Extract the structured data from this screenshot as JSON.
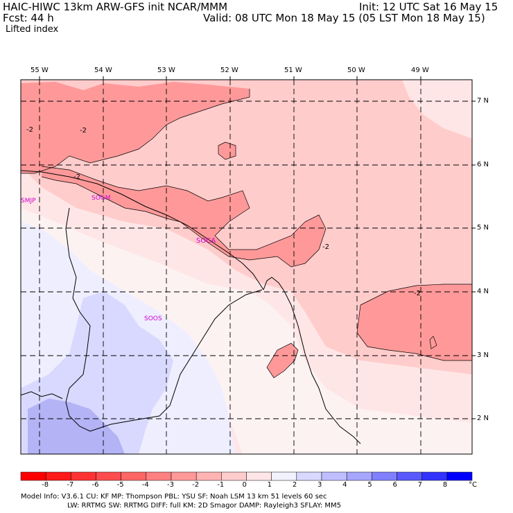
{
  "header": {
    "title": "HAIC-HIWC 13km ARW-GFS init   NCAR/MMM",
    "init": "Init: 12 UTC Sat 16 May 15",
    "fcst": "Fcst:    44 h",
    "valid": "Valid: 08 UTC Mon 18 May 15 (05 LST Mon 18 May 15)",
    "field": "Lifted index"
  },
  "map": {
    "lon_labels": [
      "55 W",
      "54 W",
      "53 W",
      "52 W",
      "51 W",
      "50 W",
      "49 W"
    ],
    "lat_labels": [
      "7 N",
      "6 N",
      "5 N",
      "4 N",
      "3 N",
      "2 N"
    ],
    "stations": [
      "SMJP",
      "SOGM",
      "SOCA",
      "SOOS"
    ],
    "contour_labels": [
      "-2",
      "-2",
      "-2",
      "-2",
      "-2"
    ]
  },
  "colorbar": {
    "ticks": [
      "-8",
      "-7",
      "-6",
      "-5",
      "-4",
      "-3",
      "-2",
      "-1",
      "0",
      "1",
      "2",
      "3",
      "4",
      "5",
      "6",
      "7",
      "8"
    ],
    "unit": "°C",
    "colors": [
      "#ff1a1a",
      "#ff3333",
      "#ff4d4d",
      "#ff6666",
      "#ff8080",
      "#ff9999",
      "#ffb3b3",
      "#ffcccc",
      "#ffe6e6",
      "#f2f2ff",
      "#d9d9ff",
      "#bfbfff",
      "#a6a6ff",
      "#8080ff",
      "#5959ff",
      "#3333ff",
      "#0000ff"
    ]
  },
  "model_info": {
    "line1": "Model Info: V3.6.1     CU: KF       MP: Thompson      PBL: YSU        SF: Noah LSM    13 km    51 levels   60 sec",
    "line2": "LW: RRTMG    SW: RRTMG   DIFF: full     KM: 2D Smagor DAMP: Rayleigh3   SFLAY: MM5"
  }
}
